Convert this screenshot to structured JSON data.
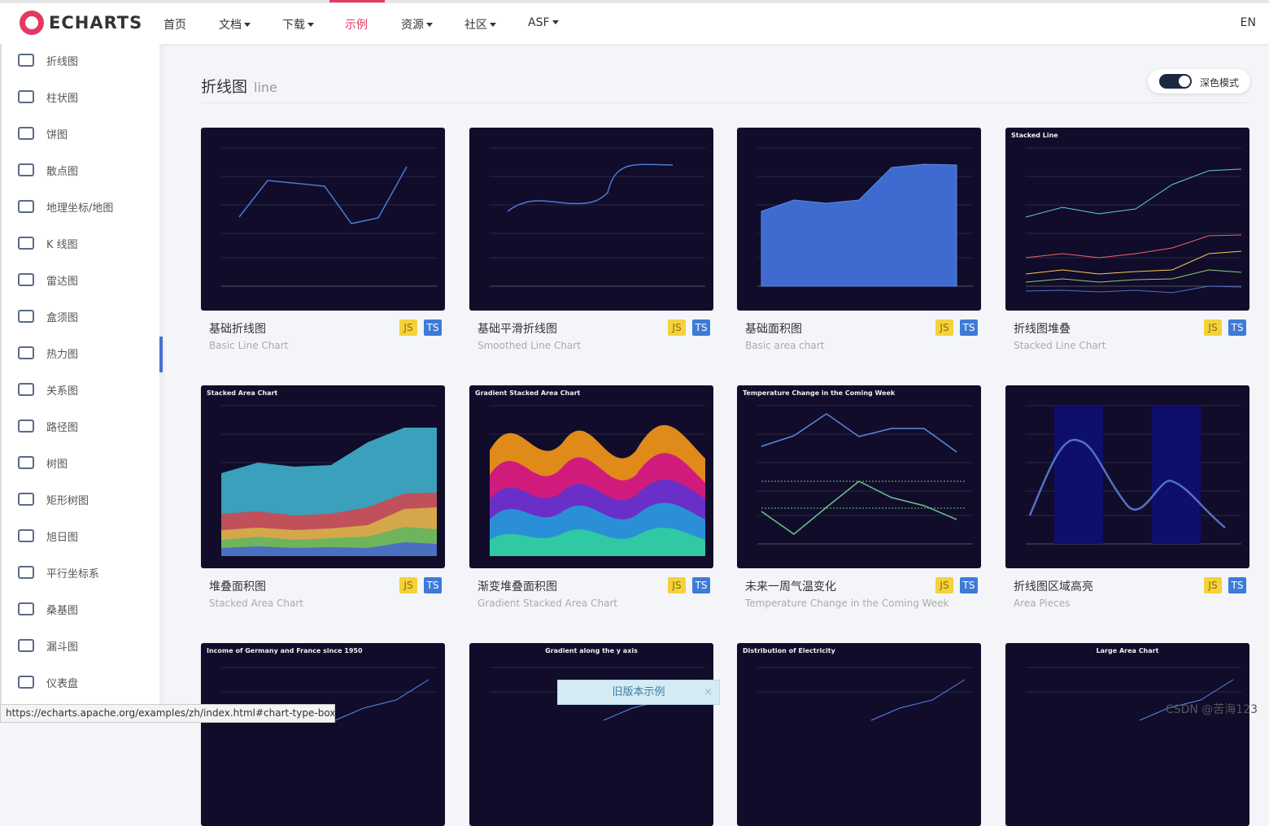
{
  "nav": {
    "logo": "ECHARTS",
    "items": [
      "首页",
      "文档",
      "下载",
      "示例",
      "资源",
      "社区",
      "ASF"
    ],
    "active": 3,
    "dropdown": [
      false,
      true,
      true,
      false,
      true,
      true,
      true
    ],
    "lang": "EN"
  },
  "sidebar": {
    "items": [
      "折线图",
      "柱状图",
      "饼图",
      "散点图",
      "地理坐标/地图",
      "K 线图",
      "雷达图",
      "盒须图",
      "热力图",
      "关系图",
      "路径图",
      "树图",
      "矩形树图",
      "旭日图",
      "平行坐标系",
      "桑基图",
      "漏斗图",
      "仪表盘"
    ]
  },
  "section": {
    "title": "折线图",
    "subtitle": "line",
    "toggle_label": "深色模式"
  },
  "badges": [
    "JS",
    "TS"
  ],
  "cards": [
    {
      "title": "基础折线图",
      "subtitle": "Basic Line Chart"
    },
    {
      "title": "基础平滑折线图",
      "subtitle": "Smoothed Line Chart"
    },
    {
      "title": "基础面积图",
      "subtitle": "Basic area chart"
    },
    {
      "title": "折线图堆叠",
      "subtitle": "Stacked Line Chart",
      "thumb_title": "Stacked Line"
    },
    {
      "title": "堆叠面积图",
      "subtitle": "Stacked Area Chart",
      "thumb_title": "Stacked Area Chart"
    },
    {
      "title": "渐变堆叠面积图",
      "subtitle": "Gradient Stacked Area Chart",
      "thumb_title": "Gradient Stacked Area Chart"
    },
    {
      "title": "未来一周气温变化",
      "subtitle": "Temperature Change in the Coming Week",
      "thumb_title": "Temperature Change in the Coming Week"
    },
    {
      "title": "折线图区域高亮",
      "subtitle": "Area Pieces"
    }
  ],
  "partial_cards": [
    {
      "thumb_title": "Income of Germany and France since 1950"
    },
    {
      "thumb_title": "Gradient along the y axis"
    },
    {
      "thumb_title": "Distribution of Electricity"
    },
    {
      "thumb_title": "Large Area Chart"
    }
  ],
  "status_url": "https://echarts.apache.org/examples/zh/index.html#chart-type-boxplot",
  "toast": "旧版本示例",
  "watermark": "CSDN @苦海123"
}
